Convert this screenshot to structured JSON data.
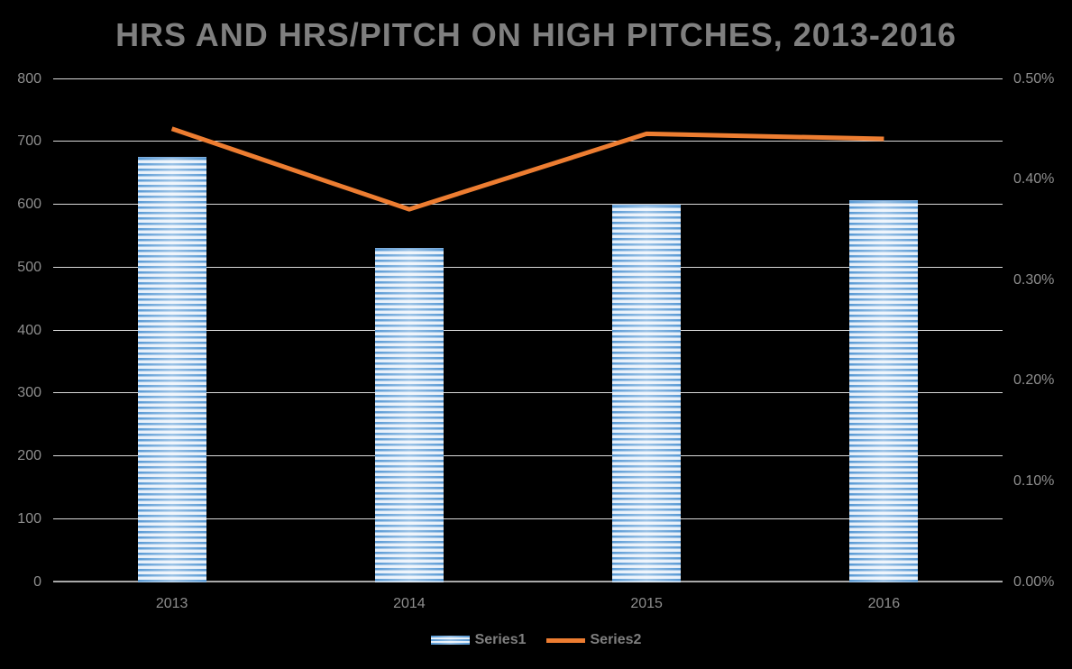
{
  "title": "HRS AND HRS/PITCH ON HIGH PITCHES, 2013-2016",
  "colors": {
    "background": "#000000",
    "title_text": "#7F7F7F",
    "axis_text": "#8E8E8E",
    "gridline": "#D9D9D9",
    "axis_line": "#A8A8A8",
    "bar_stripe_dark": "#5B9BD5",
    "bar_stripe_light": "#EAF2FB",
    "line": "#ED7D31"
  },
  "chart_data": {
    "type": "bar",
    "subtype": "combo-bar-line",
    "title": "HRS AND HRS/PITCH ON HIGH PITCHES, 2013-2016",
    "categories": [
      "2013",
      "2014",
      "2015",
      "2016"
    ],
    "series": [
      {
        "name": "Series1",
        "type": "bar",
        "axis": "left",
        "values": [
          675,
          530,
          600,
          606
        ]
      },
      {
        "name": "Series2",
        "type": "line",
        "axis": "right",
        "unit": "%",
        "values": [
          0.45,
          0.37,
          0.445,
          0.44
        ]
      }
    ],
    "left_axis": {
      "min": 0,
      "max": 800,
      "step": 100,
      "ticks": [
        "0",
        "100",
        "200",
        "300",
        "400",
        "500",
        "600",
        "700",
        "800"
      ]
    },
    "right_axis": {
      "min": 0,
      "max": 0.5,
      "step": 0.1,
      "ticks": [
        "0.00%",
        "0.10%",
        "0.20%",
        "0.30%",
        "0.40%",
        "0.50%"
      ]
    },
    "grid": true,
    "legend_position": "bottom-center",
    "xlabel": "",
    "ylabel_left": "",
    "ylabel_right": ""
  }
}
